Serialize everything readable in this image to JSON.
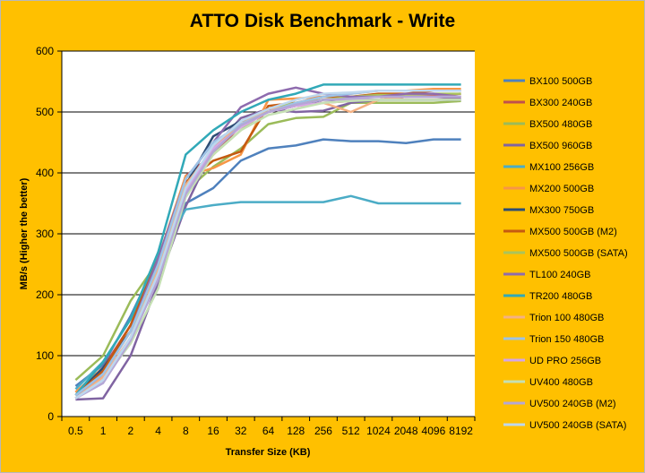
{
  "chart_data": {
    "type": "line",
    "title": "ATTO Disk Benchmark - Write",
    "xlabel": "Transfer Size (KB)",
    "ylabel": "MB/s (Higher the better)",
    "ylim": [
      0,
      600
    ],
    "yticks": [
      0,
      100,
      200,
      300,
      400,
      500,
      600
    ],
    "grid": "horizontal",
    "legend": "right",
    "categories": [
      "0.5",
      "1",
      "2",
      "4",
      "8",
      "16",
      "32",
      "64",
      "128",
      "256",
      "512",
      "1024",
      "2048",
      "4096",
      "8192"
    ],
    "series": [
      {
        "name": "BX100 500GB",
        "color": "#4F81BD",
        "values": [
          50,
          85,
          165,
          260,
          350,
          375,
          420,
          440,
          445,
          455,
          452,
          452,
          449,
          455,
          455
        ]
      },
      {
        "name": "BX300 240GB",
        "color": "#C0504D",
        "values": [
          40,
          80,
          150,
          255,
          395,
          430,
          478,
          500,
          510,
          515,
          518,
          520,
          525,
          528,
          530
        ]
      },
      {
        "name": "BX500 480GB",
        "color": "#9BBB59",
        "values": [
          60,
          100,
          190,
          255,
          370,
          410,
          440,
          480,
          490,
          492,
          515,
          515,
          515,
          515,
          518
        ]
      },
      {
        "name": "BX500 960GB",
        "color": "#8064A2",
        "values": [
          28,
          30,
          100,
          220,
          345,
          440,
          490,
          505,
          500,
          502,
          515,
          520,
          525,
          525,
          522
        ]
      },
      {
        "name": "MX100 256GB",
        "color": "#4BACC6",
        "values": [
          45,
          90,
          160,
          260,
          340,
          347,
          352,
          352,
          352,
          352,
          362,
          350,
          350,
          350,
          350
        ]
      },
      {
        "name": "MX200 500GB",
        "color": "#F79646",
        "values": [
          40,
          80,
          140,
          260,
          395,
          408,
          430,
          520,
          522,
          525,
          530,
          535,
          535,
          538,
          538
        ]
      },
      {
        "name": "MX300 750GB",
        "color": "#2C4D75",
        "values": [
          35,
          80,
          140,
          250,
          380,
          460,
          485,
          500,
          510,
          520,
          520,
          520,
          520,
          520,
          520
        ]
      },
      {
        "name": "MX500 500GB (M2)",
        "color": "#C55A11",
        "values": [
          35,
          75,
          150,
          260,
          385,
          420,
          435,
          510,
          515,
          525,
          525,
          530,
          530,
          535,
          535
        ]
      },
      {
        "name": "MX500 500GB (SATA)",
        "color": "#A9C45D",
        "values": [
          30,
          70,
          140,
          250,
          380,
          430,
          470,
          505,
          515,
          520,
          525,
          528,
          528,
          530,
          530
        ]
      },
      {
        "name": "TL100 240GB",
        "color": "#8E6BAE",
        "values": [
          30,
          70,
          140,
          260,
          390,
          450,
          508,
          530,
          540,
          530,
          525,
          525,
          530,
          530,
          525
        ]
      },
      {
        "name": "TR200 480GB",
        "color": "#31A9B8",
        "values": [
          35,
          90,
          160,
          270,
          430,
          470,
          500,
          520,
          530,
          545,
          545,
          545,
          545,
          545,
          545
        ]
      },
      {
        "name": "Trion 100 480GB",
        "color": "#F4B183",
        "values": [
          30,
          65,
          130,
          240,
          380,
          440,
          480,
          505,
          510,
          515,
          500,
          520,
          525,
          525,
          525
        ]
      },
      {
        "name": "Trion 150 480GB",
        "color": "#9DC3E6",
        "values": [
          35,
          70,
          140,
          250,
          390,
          450,
          480,
          500,
          515,
          525,
          530,
          535,
          535,
          535,
          535
        ]
      },
      {
        "name": "UD PRO 256GB",
        "color": "#D5A6E6",
        "values": [
          30,
          60,
          130,
          230,
          370,
          440,
          475,
          500,
          510,
          515,
          520,
          520,
          520,
          520,
          520
        ]
      },
      {
        "name": "UV400 480GB",
        "color": "#C5E0B4",
        "values": [
          30,
          60,
          120,
          210,
          360,
          430,
          470,
          495,
          505,
          515,
          518,
          520,
          520,
          520,
          520
        ]
      },
      {
        "name": "UV500 240GB (M2)",
        "color": "#B4A7D6",
        "values": [
          30,
          55,
          125,
          225,
          365,
          435,
          478,
          500,
          512,
          520,
          522,
          525,
          525,
          525,
          525
        ]
      },
      {
        "name": "UV500 240GB (SATA)",
        "color": "#BDD7EE",
        "values": [
          30,
          60,
          130,
          235,
          375,
          445,
          485,
          505,
          520,
          530,
          532,
          535,
          535,
          535,
          535
        ]
      }
    ]
  }
}
